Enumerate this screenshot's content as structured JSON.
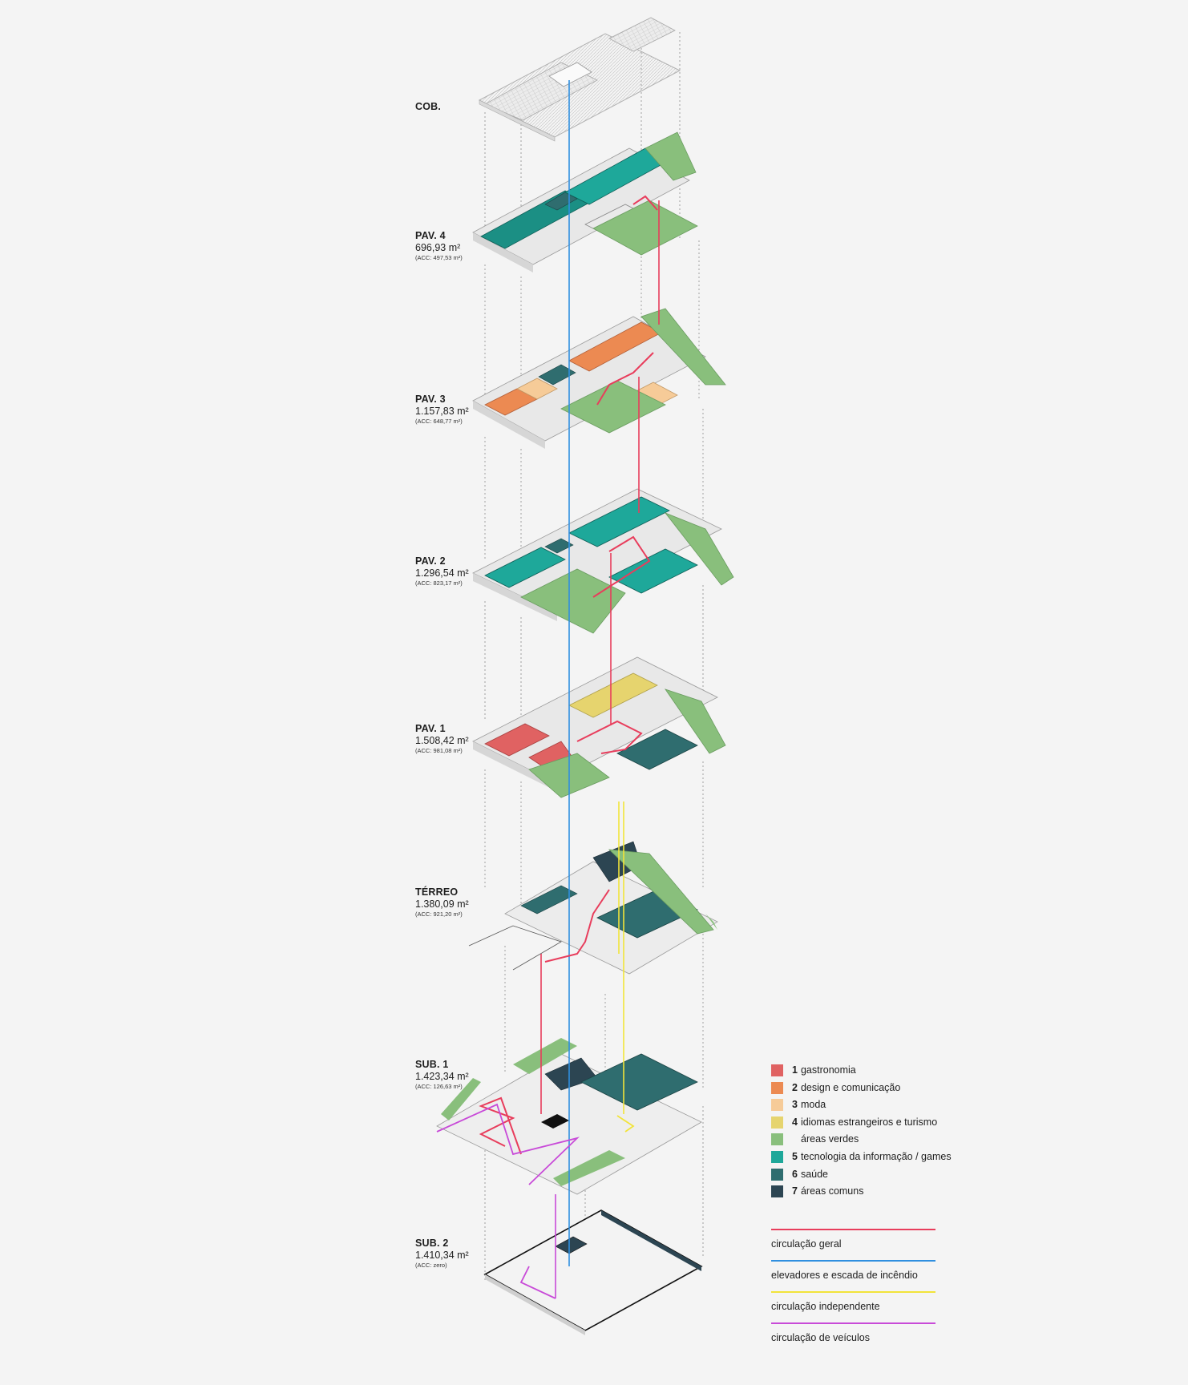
{
  "levels": [
    {
      "name": "COB.",
      "area": "",
      "acc": ""
    },
    {
      "name": "PAV. 4",
      "area": "696,93 m²",
      "acc": "(ACC: 497,53 m²)"
    },
    {
      "name": "PAV. 3",
      "area": "1.157,83 m²",
      "acc": "(ACC: 648,77 m²)"
    },
    {
      "name": "PAV. 2",
      "area": "1.296,54 m²",
      "acc": "(ACC: 823,17 m²)"
    },
    {
      "name": "PAV. 1",
      "area": "1.508,42 m²",
      "acc": "(ACC: 981,08 m²)"
    },
    {
      "name": "TÉRREO",
      "area": "1.380,09 m²",
      "acc": "(ACC: 921,20 m²)"
    },
    {
      "name": "SUB. 1",
      "area": "1.423,34 m²",
      "acc": "(ACC: 126,63 m²)"
    },
    {
      "name": "SUB. 2",
      "area": "1.410,34 m²",
      "acc": "(ACC: zero)"
    }
  ],
  "legend": {
    "uses": [
      {
        "num": "1",
        "label": "gastronomia",
        "color": "#e06262"
      },
      {
        "num": "2",
        "label": "design e comunicação",
        "color": "#ec8a52"
      },
      {
        "num": "3",
        "label": "moda",
        "color": "#f6cb98"
      },
      {
        "num": "4",
        "label": "idiomas estrangeiros e turismo",
        "color": "#e6d46e"
      },
      {
        "num": "",
        "label": "áreas verdes",
        "color": "#89bf7c"
      },
      {
        "num": "5",
        "label": "tecnologia da informação / games",
        "color": "#1ea89a"
      },
      {
        "num": "6",
        "label": "saúde",
        "color": "#2f6d6f"
      },
      {
        "num": "7",
        "label": "áreas comuns",
        "color": "#2c4552"
      }
    ],
    "circulation": [
      {
        "label": "circulação geral",
        "color": "#e83d5c"
      },
      {
        "label": "elevadores e escada de incêndio",
        "color": "#2f8fe0"
      },
      {
        "label": "circulação independente",
        "color": "#f2e43a"
      },
      {
        "label": "circulação de veículos",
        "color": "#c84ad8"
      }
    ]
  }
}
